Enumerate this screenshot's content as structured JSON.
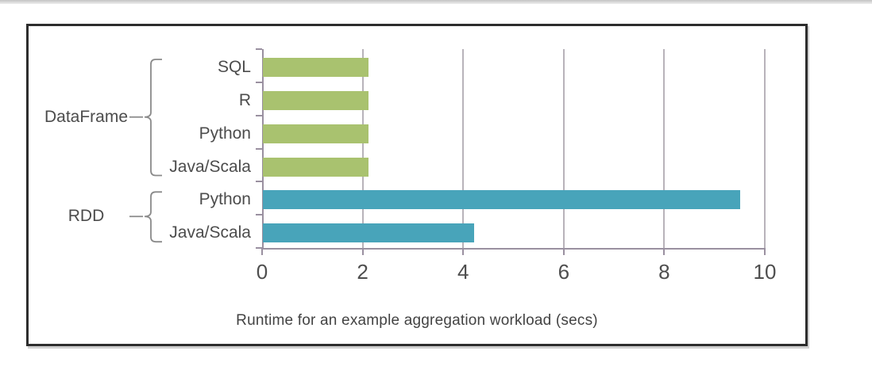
{
  "page": {
    "background": "#ffffff",
    "top_edge_color": "#c3c3c3"
  },
  "frame": {
    "border_color": "#2d2d2d",
    "background": "#ffffff"
  },
  "chart_data": {
    "type": "bar",
    "orientation": "horizontal",
    "title": "",
    "xlabel": "Runtime for an example aggregation workload (secs)",
    "ylabel": "",
    "xlim": [
      0,
      10
    ],
    "xticks": [
      0,
      2,
      4,
      6,
      8,
      10
    ],
    "grid": true,
    "legend_position": "none",
    "groups": [
      {
        "label": "DataFrame",
        "color": "#a9c26f",
        "rows": [
          {
            "label": "SQL",
            "value": 2.1
          },
          {
            "label": "R",
            "value": 2.1
          },
          {
            "label": "Python",
            "value": 2.1
          },
          {
            "label": "Java/Scala",
            "value": 2.1
          }
        ]
      },
      {
        "label": "RDD",
        "color": "#48a4ba",
        "rows": [
          {
            "label": "Python",
            "value": 9.5
          },
          {
            "label": "Java/Scala",
            "value": 4.2
          }
        ]
      }
    ]
  },
  "style_colors": {
    "grid_line": "#b8b3ba",
    "axis_line": "#9a90a0",
    "tick_label": "#4e4e4e",
    "category_label": "#4c4c4c",
    "group_label": "#4c4c4c",
    "brace": "#8a8a8a",
    "axis_title": "#434343"
  }
}
